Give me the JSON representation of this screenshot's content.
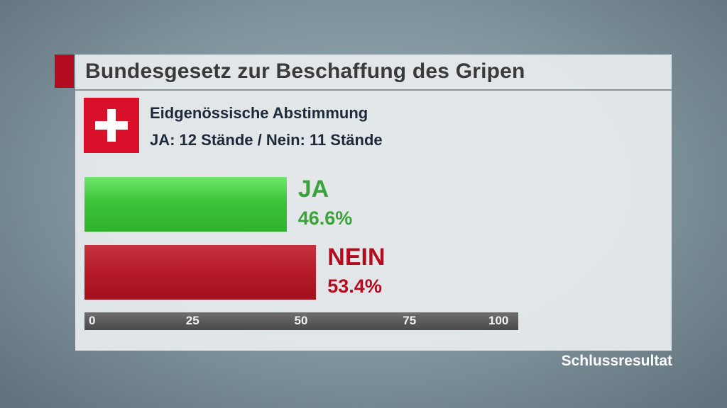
{
  "title": "Bundesgesetz zur Beschaffung des Gripen",
  "subtitle_line1": "Eidgenössische Abstimmung",
  "subtitle_line2": "JA: 12 Stände / Nein: 11 Stände",
  "footer": "Schlussresultat",
  "flag_icon": "swiss-flag-icon",
  "colors": {
    "ja": "#3aa33a",
    "nein": "#b30c1e",
    "accent": "#b30c1e"
  },
  "chart_data": {
    "type": "bar",
    "orientation": "horizontal",
    "categories": [
      "JA",
      "NEIN"
    ],
    "values": [
      46.6,
      53.4
    ],
    "value_labels": [
      "46.6%",
      "53.4%"
    ],
    "xlim": [
      0,
      100
    ],
    "ticks": [
      "0",
      "25",
      "50",
      "75",
      "100"
    ]
  }
}
